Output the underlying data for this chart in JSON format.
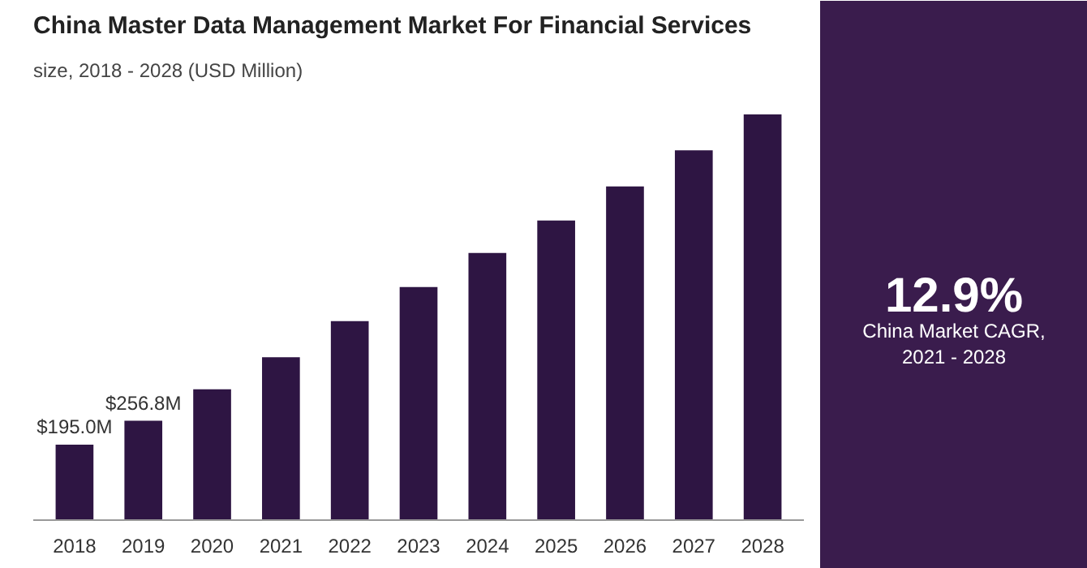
{
  "chart_data": {
    "type": "bar",
    "title": "China Master Data Management Market For Financial Services",
    "subtitle": "size, 2018 - 2028 (USD Million)",
    "categories": [
      "2018",
      "2019",
      "2020",
      "2021",
      "2022",
      "2023",
      "2024",
      "2025",
      "2026",
      "2027",
      "2028"
    ],
    "values": [
      195.0,
      256.8,
      338,
      421,
      514,
      602,
      690,
      774,
      862,
      955,
      1048
    ],
    "value_labels": [
      "$195.0M",
      "$256.8M",
      null,
      null,
      null,
      null,
      null,
      null,
      null,
      null,
      null
    ],
    "color": "#2e1543",
    "annotations": [
      "12.9%",
      "China Market CAGR, 2021 - 2028"
    ],
    "grid": false
  }
}
